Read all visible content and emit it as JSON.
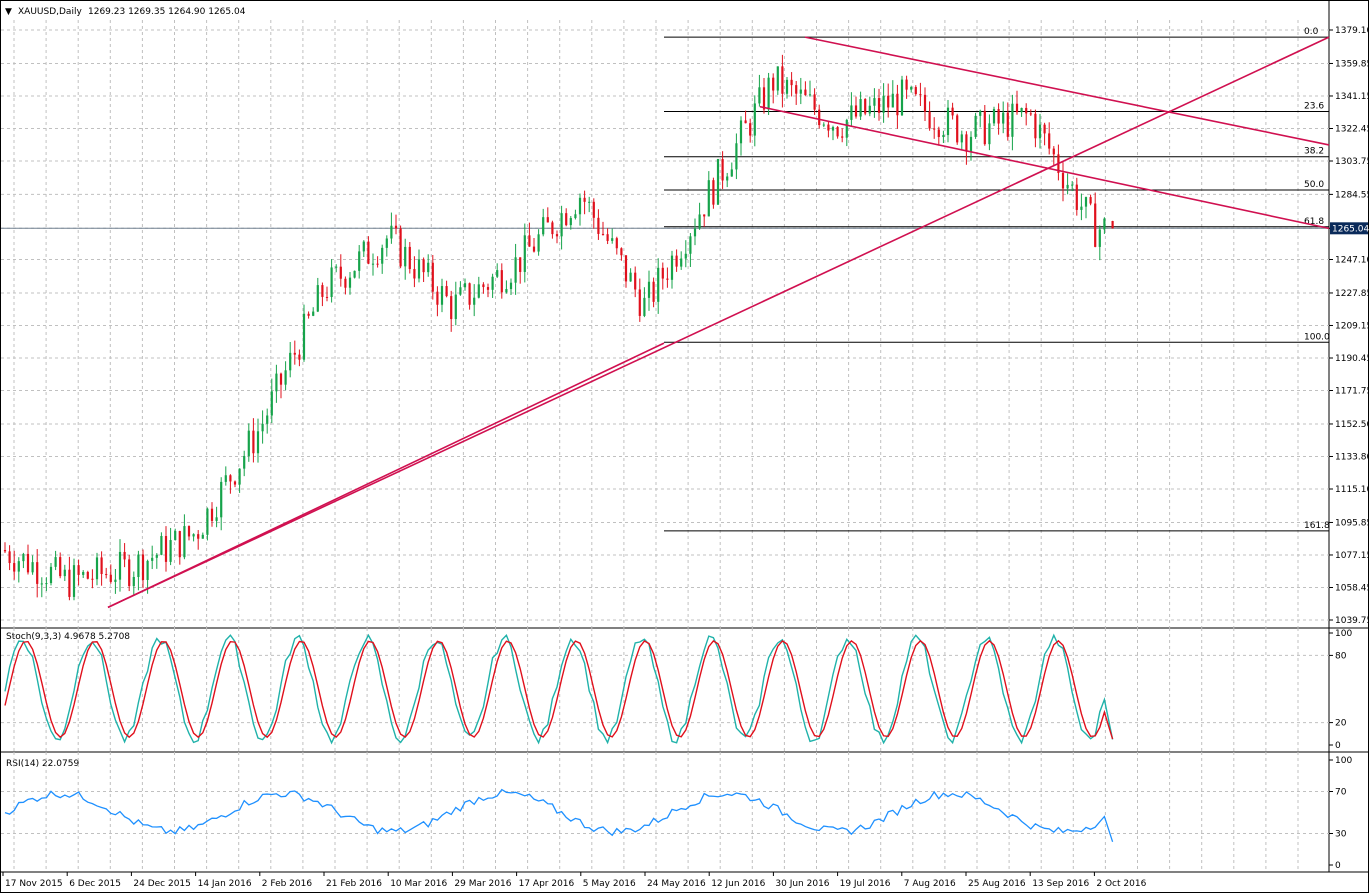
{
  "header": {
    "symbol": "XAUUSD,Daily",
    "ohlc": "1269.23 1269.35 1264.90 1265.04"
  },
  "colors": {
    "bull": "#16a34a",
    "bear": "#e0101c",
    "trendline": "#d01050",
    "stoch_k": "#20b2aa",
    "stoch_d": "#e0101c",
    "rsi": "#1e90ff",
    "grid": "#c0c0c0",
    "current_price_bg": "#0a2a5a"
  },
  "chart_data": [
    {
      "type": "candlestick",
      "title": "XAUUSD,Daily",
      "ylim": [
        1039.75,
        1379.1
      ],
      "y_ticks": [
        "1379.10",
        "1359.85",
        "1341.15",
        "1322.45",
        "1303.75",
        "1284.55",
        "1265.04",
        "1247.10",
        "1227.85",
        "1209.15",
        "1190.45",
        "1171.75",
        "1152.50",
        "1133.80",
        "1115.10",
        "1095.85",
        "1077.15",
        "1058.45",
        "1039.75"
      ],
      "x_ticks": [
        "17 Nov 2015",
        "6 Dec 2015",
        "24 Dec 2015",
        "14 Jan 2016",
        "2 Feb 2016",
        "21 Feb 2016",
        "10 Mar 2016",
        "29 Mar 2016",
        "17 Apr 2016",
        "5 May 2016",
        "24 May 2016",
        "12 Jun 2016",
        "30 Jun 2016",
        "19 Jul 2016",
        "7 Aug 2016",
        "25 Aug 2016",
        "13 Sep 2016",
        "2 Oct 2016"
      ],
      "current_price": 1265.04,
      "last_candle": {
        "open": 1269.23,
        "high": 1269.35,
        "low": 1264.9,
        "close": 1265.04
      },
      "price_path": [
        {
          "x": "17 Nov 2015",
          "y": 1080
        },
        {
          "x": "6 Dec 2015",
          "y": 1062
        },
        {
          "x": "24 Dec 2015",
          "y": 1070
        },
        {
          "x": "14 Jan 2016",
          "y": 1090
        },
        {
          "x": "2 Feb 2016",
          "y": 1150
        },
        {
          "x": "21 Feb 2016",
          "y": 1230
        },
        {
          "x": "10 Mar 2016",
          "y": 1260
        },
        {
          "x": "29 Mar 2016",
          "y": 1220
        },
        {
          "x": "17 Apr 2016",
          "y": 1245
        },
        {
          "x": "5 May 2016",
          "y": 1285
        },
        {
          "x": "24 May 2016",
          "y": 1220
        },
        {
          "x": "12 Jun 2016",
          "y": 1285
        },
        {
          "x": "30 Jun 2016",
          "y": 1350
        },
        {
          "x": "19 Jul 2016",
          "y": 1325
        },
        {
          "x": "7 Aug 2016",
          "y": 1340
        },
        {
          "x": "25 Aug 2016",
          "y": 1320
        },
        {
          "x": "13 Sep 2016",
          "y": 1330
        },
        {
          "x": "2 Oct 2016",
          "y": 1265
        }
      ],
      "fibonacci": [
        {
          "label": "0.0",
          "price": 1375.0
        },
        {
          "label": "23.6",
          "price": 1332.2
        },
        {
          "label": "38.2",
          "price": 1306.2
        },
        {
          "label": "50.0",
          "price": 1287.1
        },
        {
          "label": "61.8",
          "price": 1265.9
        },
        {
          "label": "100.0",
          "price": 1199.5
        },
        {
          "label": "161.8",
          "price": 1091.0
        }
      ]
    },
    {
      "type": "line",
      "title": "Stoch(9,3,3) 4.9678 5.2708",
      "ylim": [
        0,
        100
      ],
      "y_ticks": [
        "100",
        "80",
        "20",
        "0"
      ],
      "k_value": 4.9678,
      "d_value": 5.2708
    },
    {
      "type": "line",
      "title": "RSI(14) 22.0759",
      "ylim": [
        0,
        100
      ],
      "y_ticks": [
        "100",
        "70",
        "30",
        "0"
      ],
      "value": 22.0759
    }
  ]
}
